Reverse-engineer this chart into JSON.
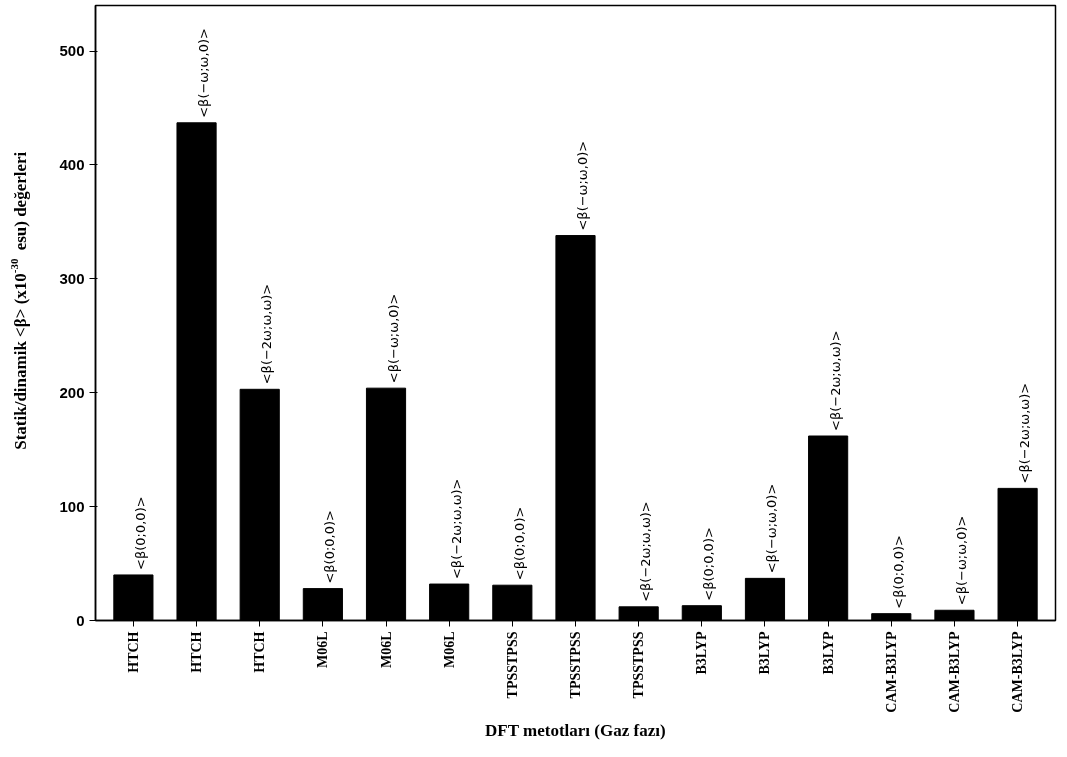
{
  "chart_data": {
    "type": "bar",
    "xlabel": "DFT metotları (Gaz fazı)",
    "ylabel": "Statik/dinamik <β> (x10$^{-30}$ esu) değerleri",
    "categories": [
      "HTCH",
      "HTCH",
      "HTCH",
      "M06L",
      "M06L",
      "M06L",
      "TPSSTPSS",
      "TPSSTPSS",
      "TPSSTPSS",
      "B3LYP",
      "B3LYP",
      "B3LYP",
      "CAM-B3LYP",
      "CAM-B3LYP",
      "CAM-B3LYP"
    ],
    "values": [
      40,
      437,
      203,
      28,
      204,
      32,
      31,
      338,
      12,
      13,
      37,
      162,
      6,
      9,
      116
    ],
    "color": "#000000",
    "ylim": [
      0,
      540
    ],
    "yticks": [
      0,
      100,
      200,
      300,
      400,
      500
    ],
    "grid": false,
    "annotations": [
      {
        "text": "<β(0;0,0)>",
        "y": 40
      },
      {
        "text": "<β(−ω;ω,0)>",
        "y": 437
      },
      {
        "text": "<β(−2ω;ω,ω)>",
        "y": 203
      },
      {
        "text": "<β(0;0,0)>",
        "y": 28
      },
      {
        "text": "<β(−ω;ω,0)>",
        "y": 204
      },
      {
        "text": "<β(−2ω;ω,ω)>",
        "y": 32
      },
      {
        "text": "<β(0;0,0)>",
        "y": 31
      },
      {
        "text": "<β(−ω;ω,0)>",
        "y": 338
      },
      {
        "text": "<β(−2ω;ω,ω)>",
        "y": 12
      },
      {
        "text": "<β(0;0,0)>",
        "y": 13
      },
      {
        "text": "<β(−ω;ω,0)>",
        "y": 37
      },
      {
        "text": "<β(−2ω;ω,ω)>",
        "y": 162
      },
      {
        "text": "<β(0;0,0)>",
        "y": 6
      },
      {
        "text": "<β(−ω;ω,0)>",
        "y": 9
      },
      {
        "text": "<β(−2ω;ω,ω)>",
        "y": 116
      }
    ]
  }
}
